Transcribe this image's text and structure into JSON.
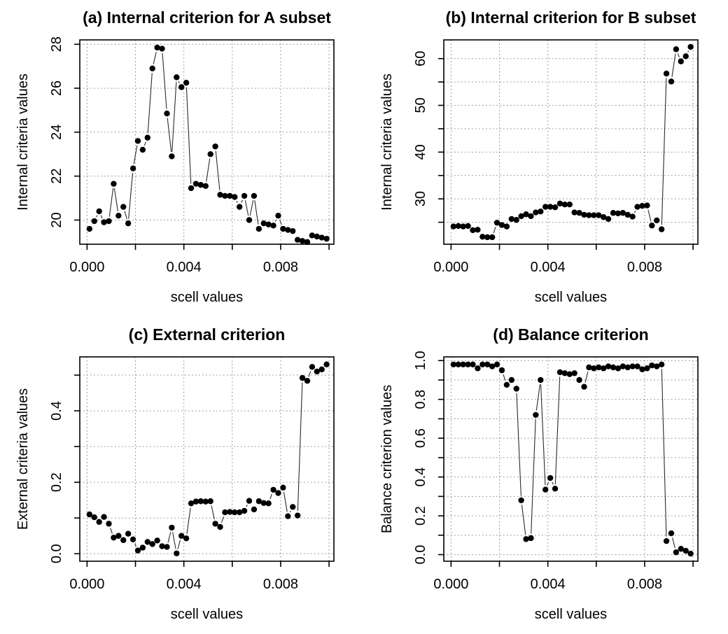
{
  "figure": {
    "description": "2x2 panel scatter figure of clustering criteria versus scell values",
    "background": "#ffffff"
  },
  "style": {
    "point_color": "#000000",
    "line_color": "#2b2b2b",
    "grid_color": "#8a8a8a",
    "axis_color": "#000000",
    "text_color": "#000000"
  },
  "chart_data": [
    {
      "id": "a",
      "type": "scatter",
      "title": "(a) Internal criterion for A subset",
      "xlabel": "scell values",
      "ylabel": "Internal criteria values",
      "xlim": [
        -0.0003,
        0.0102
      ],
      "ylim": [
        18.9,
        28.2
      ],
      "xticks": [
        0,
        0.002,
        0.004,
        0.006,
        0.008,
        0.01
      ],
      "xtick_labels": [
        "0.000",
        "",
        "0.004",
        "",
        "0.008",
        ""
      ],
      "yticks": [
        20,
        22,
        24,
        26,
        28
      ],
      "ytick_labels": [
        "20",
        "22",
        "24",
        "26",
        "28"
      ],
      "grid": true,
      "legend": null,
      "x": [
        0.0001,
        0.0003,
        0.0005,
        0.0007,
        0.0009,
        0.0011,
        0.0013,
        0.0015,
        0.0017,
        0.0019,
        0.0021,
        0.0023,
        0.0025,
        0.0027,
        0.0029,
        0.0031,
        0.0033,
        0.0035,
        0.0037,
        0.0039,
        0.0041,
        0.0043,
        0.0045,
        0.0047,
        0.0049,
        0.0051,
        0.0053,
        0.0055,
        0.0057,
        0.0059,
        0.0061,
        0.0063,
        0.0065,
        0.0067,
        0.0069,
        0.0071,
        0.0073,
        0.0075,
        0.0077,
        0.0079,
        0.0081,
        0.0083,
        0.0085,
        0.0087,
        0.0089,
        0.0091,
        0.0093,
        0.0095,
        0.0097,
        0.0099
      ],
      "y": [
        19.6,
        19.95,
        20.4,
        19.9,
        19.95,
        21.65,
        20.2,
        20.6,
        19.85,
        22.35,
        23.6,
        23.2,
        23.75,
        26.9,
        27.85,
        27.8,
        24.85,
        22.9,
        26.5,
        26.05,
        26.25,
        21.45,
        21.65,
        21.6,
        21.55,
        23.0,
        23.35,
        21.15,
        21.1,
        21.1,
        21.05,
        20.6,
        21.1,
        20.0,
        21.1,
        19.6,
        19.85,
        19.8,
        19.75,
        20.2,
        19.6,
        19.55,
        19.5,
        19.1,
        19.05,
        19.0,
        19.3,
        19.25,
        19.2,
        19.15
      ]
    },
    {
      "id": "b",
      "type": "scatter",
      "title": "(b) Internal criterion for B subset",
      "xlabel": "scell values",
      "ylabel": "Internal criteria values",
      "xlim": [
        -0.0003,
        0.0102
      ],
      "ylim": [
        20.3,
        64.0
      ],
      "xticks": [
        0,
        0.002,
        0.004,
        0.006,
        0.008,
        0.01
      ],
      "xtick_labels": [
        "0.000",
        "",
        "0.004",
        "",
        "0.008",
        ""
      ],
      "yticks": [
        25,
        30,
        35,
        40,
        45,
        50,
        55,
        60
      ],
      "ytick_labels": [
        "",
        "30",
        "",
        "40",
        "",
        "50",
        "",
        "60"
      ],
      "grid": true,
      "legend": null,
      "x": [
        0.0001,
        0.0003,
        0.0005,
        0.0007,
        0.0009,
        0.0011,
        0.0013,
        0.0015,
        0.0017,
        0.0019,
        0.0021,
        0.0023,
        0.0025,
        0.0027,
        0.0029,
        0.0031,
        0.0033,
        0.0035,
        0.0037,
        0.0039,
        0.0041,
        0.0043,
        0.0045,
        0.0047,
        0.0049,
        0.0051,
        0.0053,
        0.0055,
        0.0057,
        0.0059,
        0.0061,
        0.0063,
        0.0065,
        0.0067,
        0.0069,
        0.0071,
        0.0073,
        0.0075,
        0.0077,
        0.0079,
        0.0081,
        0.0083,
        0.0085,
        0.0087,
        0.0089,
        0.0091,
        0.0093,
        0.0095,
        0.0097,
        0.0099
      ],
      "y": [
        24.1,
        24.2,
        24.1,
        24.2,
        23.3,
        23.4,
        21.9,
        21.8,
        21.8,
        24.9,
        24.4,
        24.1,
        25.7,
        25.5,
        26.3,
        26.7,
        26.3,
        27.1,
        27.3,
        28.3,
        28.3,
        28.2,
        29.0,
        28.8,
        28.8,
        27.1,
        27.0,
        26.6,
        26.5,
        26.5,
        26.5,
        26.1,
        25.7,
        27.0,
        26.9,
        27.0,
        26.6,
        26.2,
        28.3,
        28.5,
        28.6,
        24.3,
        25.4,
        23.5,
        56.8,
        55.1,
        62.0,
        59.4,
        60.5,
        62.5
      ]
    },
    {
      "id": "c",
      "type": "scatter",
      "title": "(c) External criterion",
      "xlabel": "scell values",
      "ylabel": "External criteria values",
      "xlim": [
        -0.0003,
        0.0102
      ],
      "ylim": [
        -0.021,
        0.551
      ],
      "xticks": [
        0,
        0.002,
        0.004,
        0.006,
        0.008,
        0.01
      ],
      "xtick_labels": [
        "0.000",
        "",
        "0.004",
        "",
        "0.008",
        ""
      ],
      "yticks": [
        0,
        0.1,
        0.2,
        0.3,
        0.4,
        0.5
      ],
      "ytick_labels": [
        "0.0",
        "",
        "0.2",
        "",
        "0.4",
        ""
      ],
      "grid": true,
      "legend": null,
      "x": [
        0.0001,
        0.0003,
        0.0005,
        0.0007,
        0.0009,
        0.0011,
        0.0013,
        0.0015,
        0.0017,
        0.0019,
        0.0021,
        0.0023,
        0.0025,
        0.0027,
        0.0029,
        0.0031,
        0.0033,
        0.0035,
        0.0037,
        0.0039,
        0.0041,
        0.0043,
        0.0045,
        0.0047,
        0.0049,
        0.0051,
        0.0053,
        0.0055,
        0.0057,
        0.0059,
        0.0061,
        0.0063,
        0.0065,
        0.0067,
        0.0069,
        0.0071,
        0.0073,
        0.0075,
        0.0077,
        0.0079,
        0.0081,
        0.0083,
        0.0085,
        0.0087,
        0.0089,
        0.0091,
        0.0093,
        0.0095,
        0.0097,
        0.0099
      ],
      "y": [
        0.11,
        0.102,
        0.089,
        0.103,
        0.084,
        0.045,
        0.05,
        0.038,
        0.056,
        0.04,
        0.009,
        0.017,
        0.033,
        0.027,
        0.037,
        0.021,
        0.019,
        0.073,
        0.001,
        0.05,
        0.043,
        0.141,
        0.146,
        0.147,
        0.146,
        0.147,
        0.084,
        0.075,
        0.116,
        0.117,
        0.116,
        0.116,
        0.12,
        0.148,
        0.124,
        0.147,
        0.142,
        0.141,
        0.179,
        0.17,
        0.185,
        0.105,
        0.131,
        0.107,
        0.492,
        0.484,
        0.523,
        0.51,
        0.516,
        0.53
      ]
    },
    {
      "id": "d",
      "type": "scatter",
      "title": "(d) Balance criterion",
      "xlabel": "scell values",
      "ylabel": "Balance criterion values",
      "xlim": [
        -0.0003,
        0.0102
      ],
      "ylim": [
        -0.034,
        1.019
      ],
      "xticks": [
        0,
        0.002,
        0.004,
        0.006,
        0.008,
        0.01
      ],
      "xtick_labels": [
        "0.000",
        "",
        "0.004",
        "",
        "0.008",
        ""
      ],
      "yticks": [
        0,
        0.1,
        0.2,
        0.3,
        0.4,
        0.5,
        0.6,
        0.7,
        0.8,
        0.9,
        1.0
      ],
      "ytick_labels": [
        "0.0",
        "",
        "0.2",
        "",
        "0.4",
        "",
        "0.6",
        "",
        "0.8",
        "",
        "1.0"
      ],
      "grid": true,
      "legend": null,
      "x": [
        0.0001,
        0.0003,
        0.0005,
        0.0007,
        0.0009,
        0.0011,
        0.0013,
        0.0015,
        0.0017,
        0.0019,
        0.0021,
        0.0023,
        0.0025,
        0.0027,
        0.0029,
        0.0031,
        0.0033,
        0.0035,
        0.0037,
        0.0039,
        0.0041,
        0.0043,
        0.0045,
        0.0047,
        0.0049,
        0.0051,
        0.0053,
        0.0055,
        0.0057,
        0.0059,
        0.0061,
        0.0063,
        0.0065,
        0.0067,
        0.0069,
        0.0071,
        0.0073,
        0.0075,
        0.0077,
        0.0079,
        0.0081,
        0.0083,
        0.0085,
        0.0087,
        0.0089,
        0.0091,
        0.0093,
        0.0095,
        0.0097,
        0.0099
      ],
      "y": [
        0.98,
        0.98,
        0.98,
        0.98,
        0.98,
        0.96,
        0.98,
        0.98,
        0.97,
        0.98,
        0.95,
        0.875,
        0.9,
        0.855,
        0.28,
        0.08,
        0.085,
        0.72,
        0.9,
        0.335,
        0.395,
        0.34,
        0.94,
        0.935,
        0.93,
        0.935,
        0.9,
        0.865,
        0.965,
        0.96,
        0.965,
        0.96,
        0.97,
        0.965,
        0.96,
        0.97,
        0.965,
        0.97,
        0.97,
        0.955,
        0.96,
        0.975,
        0.97,
        0.98,
        0.07,
        0.11,
        0.012,
        0.03,
        0.02,
        0.005
      ]
    }
  ]
}
